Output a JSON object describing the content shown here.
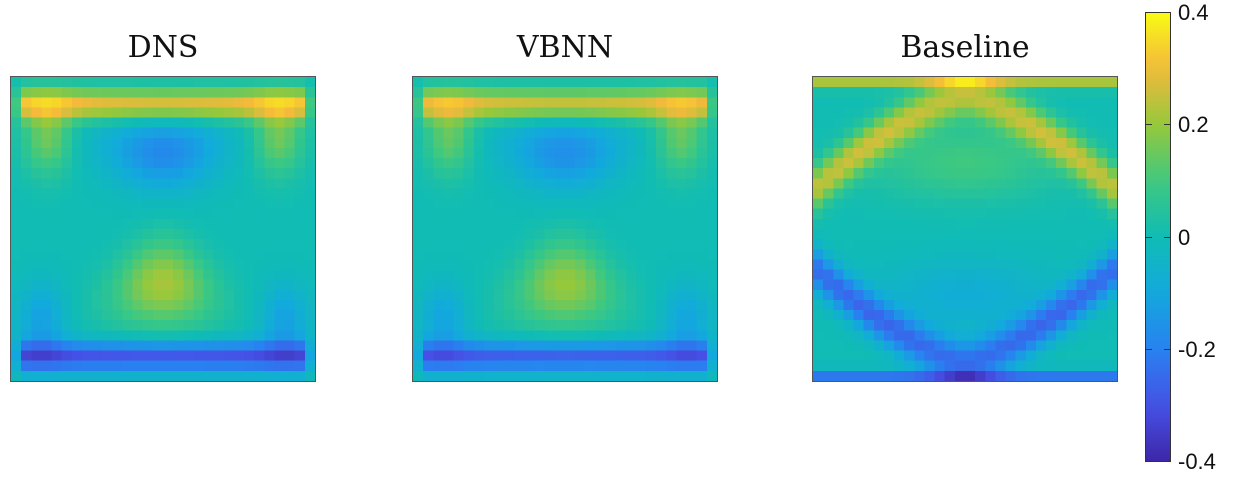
{
  "chart_data": [
    {
      "type": "heatmap",
      "title": "DNS",
      "pattern": "hourglass",
      "grid": 30
    },
    {
      "type": "heatmap",
      "title": "VBNN",
      "pattern": "hourglass",
      "grid": 30
    },
    {
      "type": "heatmap",
      "title": "Baseline",
      "pattern": "arches",
      "grid": 30
    }
  ],
  "colorbar": {
    "ticks": [
      "0.4",
      "0.2",
      "0",
      "-0.2",
      "-0.4"
    ],
    "tick_values": [
      0.4,
      0.2,
      0,
      -0.2,
      -0.4
    ],
    "range": [
      -0.4,
      0.4
    ],
    "colormap": "parula"
  }
}
